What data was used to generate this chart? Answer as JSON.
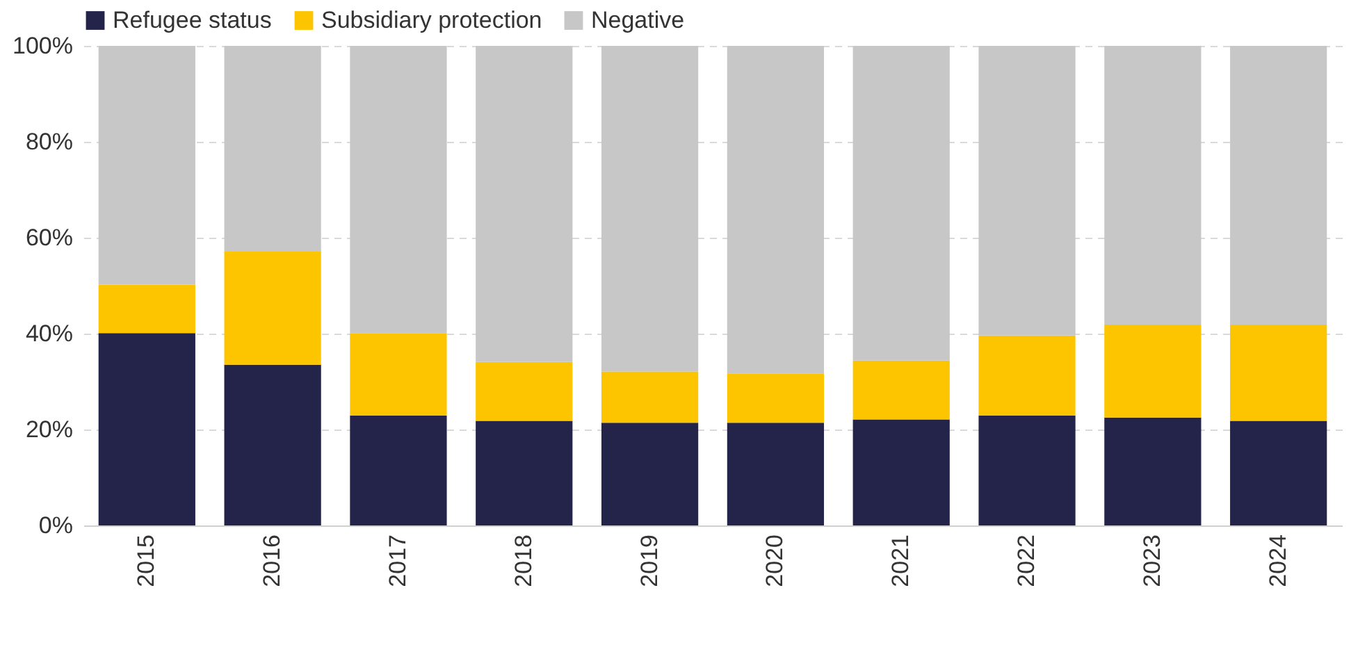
{
  "chart_data": {
    "type": "bar",
    "stacked": true,
    "categories": [
      "2015",
      "2016",
      "2017",
      "2018",
      "2019",
      "2020",
      "2021",
      "2022",
      "2023",
      "2024"
    ],
    "series": [
      {
        "name": "Refugee status",
        "color": "#24234a",
        "values": [
          40.1,
          33.5,
          22.9,
          21.8,
          21.4,
          21.4,
          22.1,
          22.9,
          22.5,
          21.8
        ]
      },
      {
        "name": "Subsidiary protection",
        "color": "#fcc500",
        "values": [
          10.1,
          23.6,
          17.2,
          12.3,
          10.7,
          10.3,
          12.3,
          16.7,
          19.4,
          20.1
        ]
      },
      {
        "name": "Negative",
        "color": "#c8c7c8",
        "values": [
          49.8,
          42.9,
          59.9,
          65.9,
          67.9,
          68.3,
          65.6,
          60.4,
          58.1,
          58.1
        ]
      }
    ],
    "ylim": [
      0,
      100
    ],
    "yticks": [
      {
        "value": 0,
        "label": "0%"
      },
      {
        "value": 20,
        "label": "20%"
      },
      {
        "value": 40,
        "label": "40%"
      },
      {
        "value": 60,
        "label": "60%"
      },
      {
        "value": 80,
        "label": "80%"
      },
      {
        "value": 100,
        "label": "100%"
      }
    ],
    "grid": "y",
    "legend": "top"
  }
}
